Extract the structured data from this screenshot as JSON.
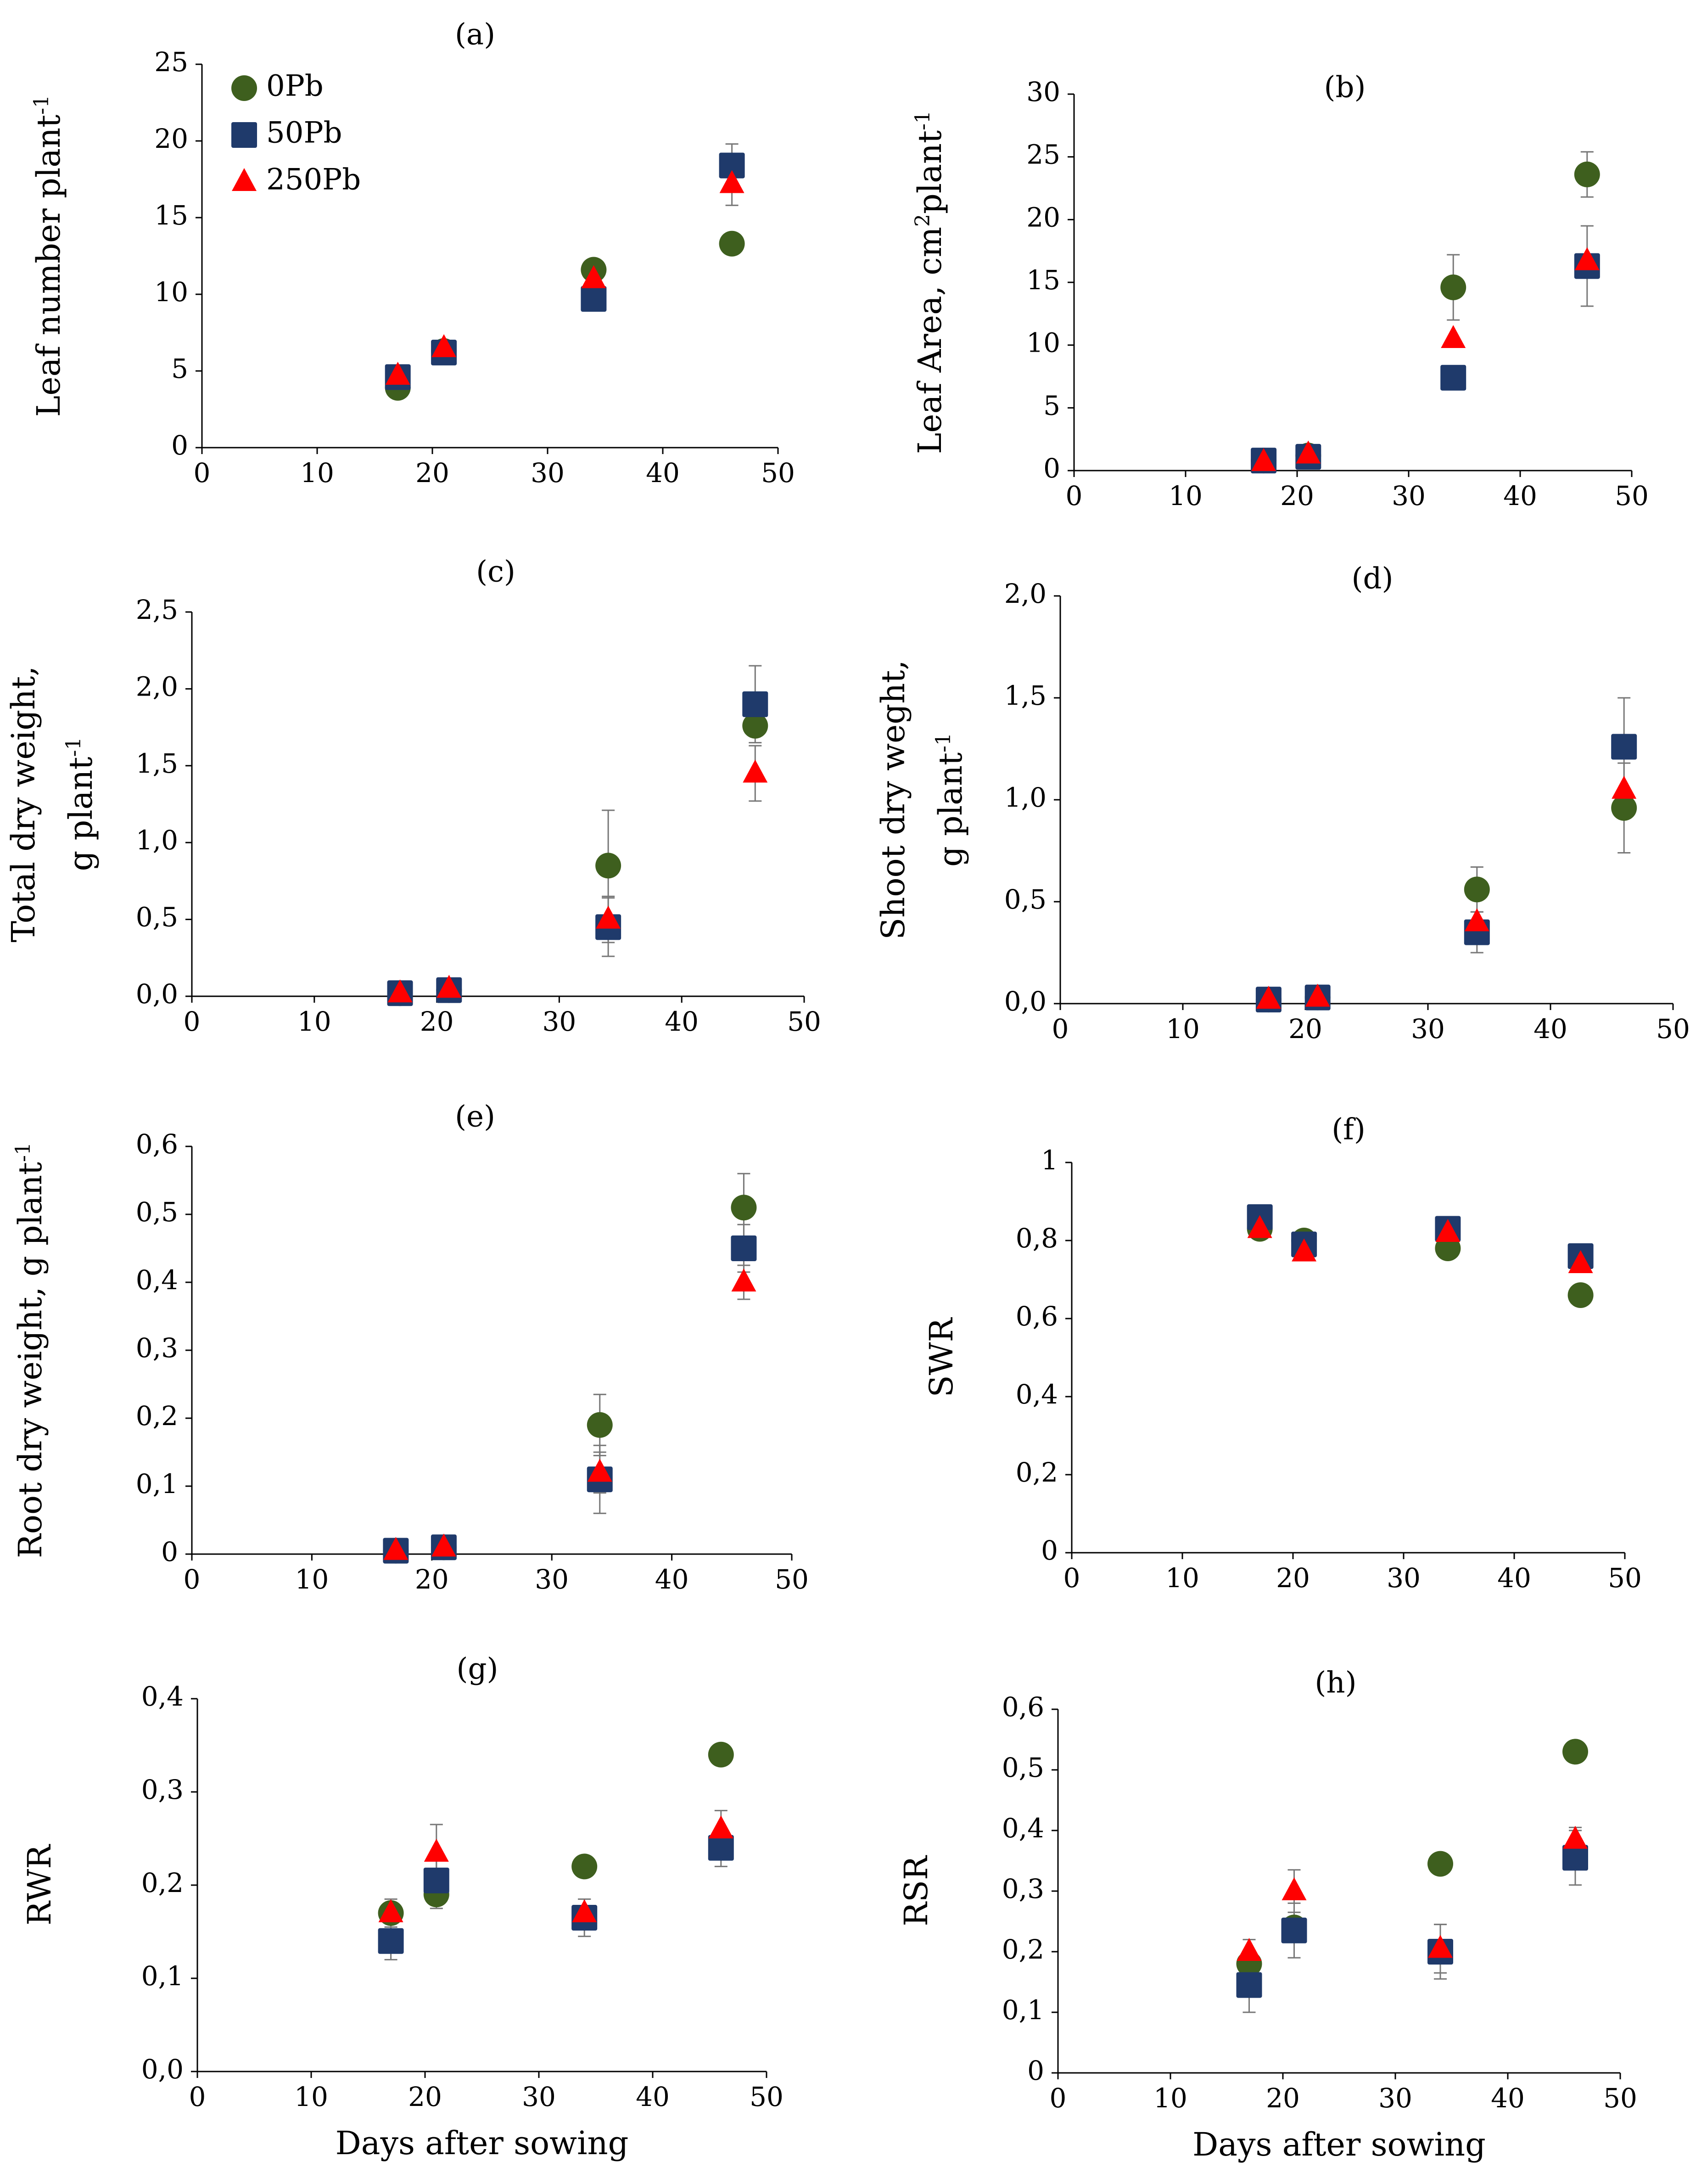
{
  "colors": {
    "0Pb": "#3e5f1e",
    "50Pb": "#1f3a6b",
    "250Pb": "#ff0000",
    "axis": "#000000",
    "errorbar": "#777777"
  },
  "legend": {
    "items": [
      {
        "label": "0Pb",
        "marker": "circle",
        "color": "#3e5f1e"
      },
      {
        "label": "50Pb",
        "marker": "square",
        "color": "#1f3a6b"
      },
      {
        "label": "250Pb",
        "marker": "triangle",
        "color": "#ff0000"
      }
    ]
  },
  "chart_data": [
    {
      "panel": "(a)",
      "type": "scatter",
      "ylabel": "Leaf number plant",
      "ylabel_sup": "-1",
      "xlabel": "",
      "xlim": [
        0,
        50
      ],
      "ylim": [
        0,
        25
      ],
      "xticks": [
        "0",
        "10",
        "20",
        "30",
        "40",
        "50"
      ],
      "yticks": [
        "0",
        "5",
        "10",
        "15",
        "20",
        "25"
      ],
      "x": [
        17,
        21,
        34,
        46
      ],
      "series": [
        {
          "name": "0Pb",
          "values": [
            3.9,
            6.3,
            11.6,
            13.3
          ],
          "err": [
            0,
            0,
            0,
            0
          ]
        },
        {
          "name": "50Pb",
          "values": [
            4.6,
            6.2,
            9.7,
            18.4
          ],
          "err": [
            0,
            0,
            0,
            1.4
          ]
        },
        {
          "name": "250Pb",
          "values": [
            4.7,
            6.5,
            11.0,
            17.2
          ],
          "err": [
            0,
            0,
            0,
            1.4
          ]
        }
      ]
    },
    {
      "panel": "(b)",
      "type": "scatter",
      "ylabel": "Leaf Area, cm",
      "ylabel_mid_sup": "2",
      "ylabel_tail": "plant",
      "ylabel_sup": "-1",
      "xlabel": "",
      "xlim": [
        0,
        50
      ],
      "ylim": [
        0,
        30
      ],
      "xticks": [
        "0",
        "10",
        "20",
        "30",
        "40",
        "50"
      ],
      "yticks": [
        "0",
        "5",
        "10",
        "15",
        "20",
        "25",
        "30"
      ],
      "x": [
        17,
        21,
        34,
        46
      ],
      "series": [
        {
          "name": "0Pb",
          "values": [
            0.8,
            1.2,
            14.6,
            23.6
          ],
          "err": [
            0,
            0,
            2.6,
            1.8
          ]
        },
        {
          "name": "50Pb",
          "values": [
            0.8,
            1.1,
            7.4,
            16.3
          ],
          "err": [
            0,
            0,
            0,
            3.2
          ]
        },
        {
          "name": "250Pb",
          "values": [
            0.7,
            1.3,
            10.5,
            16.7
          ],
          "err": [
            0,
            0,
            0,
            0
          ]
        }
      ]
    },
    {
      "panel": "(c)",
      "type": "scatter",
      "ylabel": "Total dry weight,",
      "ylabel2": "g plant",
      "ylabel_sup": "-1",
      "xlabel": "",
      "xlim": [
        0,
        50
      ],
      "ylim": [
        0,
        2.5
      ],
      "xticks": [
        "0",
        "10",
        "20",
        "30",
        "40",
        "50"
      ],
      "yticks": [
        "0,0",
        "0,5",
        "1,0",
        "1,5",
        "2,0",
        "2,5"
      ],
      "x": [
        17,
        21,
        34,
        46
      ],
      "series": [
        {
          "name": "0Pb",
          "values": [
            0.02,
            0.04,
            0.85,
            1.76
          ],
          "err": [
            0,
            0,
            0.36,
            0
          ]
        },
        {
          "name": "50Pb",
          "values": [
            0.02,
            0.04,
            0.45,
            1.9
          ],
          "err": [
            0,
            0,
            0.19,
            0.25
          ]
        },
        {
          "name": "250Pb",
          "values": [
            0.02,
            0.05,
            0.5,
            1.45
          ],
          "err": [
            0,
            0,
            0.15,
            0.18
          ]
        }
      ]
    },
    {
      "panel": "(d)",
      "type": "scatter",
      "ylabel": "Shoot dry weght,",
      "ylabel2": "g plant",
      "ylabel_sup": "-1",
      "xlabel": "",
      "xlim": [
        0,
        50
      ],
      "ylim": [
        0,
        2.0
      ],
      "xticks": [
        "0",
        "10",
        "20",
        "30",
        "40",
        "50"
      ],
      "yticks": [
        "0,0",
        "0,5",
        "1,0",
        "1,5",
        "2,0"
      ],
      "x": [
        17,
        21,
        34,
        46
      ],
      "series": [
        {
          "name": "0Pb",
          "values": [
            0.02,
            0.03,
            0.56,
            0.96
          ],
          "err": [
            0,
            0,
            0.11,
            0.22
          ]
        },
        {
          "name": "50Pb",
          "values": [
            0.02,
            0.03,
            0.35,
            1.26
          ],
          "err": [
            0,
            0,
            0.1,
            0.24
          ]
        },
        {
          "name": "250Pb",
          "values": [
            0.02,
            0.03,
            0.4,
            1.05
          ],
          "err": [
            0,
            0,
            0,
            0
          ]
        }
      ]
    },
    {
      "panel": "(e)",
      "type": "scatter",
      "ylabel": "Root dry weight, g plant",
      "ylabel_sup": "-1",
      "xlabel": "",
      "xlim": [
        0,
        50
      ],
      "ylim": [
        0,
        0.6
      ],
      "xticks": [
        "0",
        "10",
        "20",
        "30",
        "40",
        "50"
      ],
      "yticks": [
        "0",
        "0,1",
        "0,2",
        "0,3",
        "0,4",
        "0,5",
        "0,6"
      ],
      "x": [
        17,
        21,
        34,
        46
      ],
      "series": [
        {
          "name": "0Pb",
          "values": [
            0.005,
            0.01,
            0.19,
            0.51
          ],
          "err": [
            0,
            0,
            0.045,
            0.05
          ]
        },
        {
          "name": "50Pb",
          "values": [
            0.005,
            0.01,
            0.11,
            0.45
          ],
          "err": [
            0,
            0,
            0.05,
            0.035
          ]
        },
        {
          "name": "250Pb",
          "values": [
            0.005,
            0.01,
            0.12,
            0.4
          ],
          "err": [
            0,
            0,
            0.03,
            0.025
          ]
        }
      ]
    },
    {
      "panel": "(f)",
      "type": "scatter",
      "ylabel": "SWR",
      "xlabel": "",
      "xlim": [
        0,
        50
      ],
      "ylim": [
        0,
        1
      ],
      "xticks": [
        "0",
        "10",
        "20",
        "30",
        "40",
        "50"
      ],
      "yticks": [
        "0",
        "0,2",
        "0,4",
        "0,6",
        "0,8",
        "1"
      ],
      "x": [
        17,
        21,
        34,
        46
      ],
      "series": [
        {
          "name": "0Pb",
          "values": [
            0.83,
            0.8,
            0.78,
            0.66
          ],
          "err": [
            0,
            0,
            0,
            0
          ]
        },
        {
          "name": "50Pb",
          "values": [
            0.86,
            0.79,
            0.83,
            0.76
          ],
          "err": [
            0,
            0,
            0,
            0
          ]
        },
        {
          "name": "250Pb",
          "values": [
            0.83,
            0.77,
            0.82,
            0.74
          ],
          "err": [
            0,
            0,
            0,
            0
          ]
        }
      ]
    },
    {
      "panel": "(g)",
      "type": "scatter",
      "ylabel": "RWR",
      "xlabel": "Days after sowing",
      "xlim": [
        0,
        50
      ],
      "ylim": [
        0,
        0.4
      ],
      "xticks": [
        "0",
        "10",
        "20",
        "30",
        "40",
        "50"
      ],
      "yticks": [
        "0,0",
        "0,1",
        "0,2",
        "0,3",
        "0,4"
      ],
      "x": [
        17,
        21,
        34,
        46
      ],
      "series": [
        {
          "name": "0Pb",
          "values": [
            0.17,
            0.19,
            0.22,
            0.34
          ],
          "err": [
            0,
            0,
            0,
            0
          ]
        },
        {
          "name": "50Pb",
          "values": [
            0.14,
            0.205,
            0.165,
            0.24
          ],
          "err": [
            0.02,
            0.03,
            0.02,
            0.02
          ]
        },
        {
          "name": "250Pb",
          "values": [
            0.17,
            0.235,
            0.17,
            0.26
          ],
          "err": [
            0.015,
            0.03,
            0.015,
            0.02
          ]
        }
      ]
    },
    {
      "panel": "(h)",
      "type": "scatter",
      "ylabel": "RSR",
      "xlabel": "Days after sowing",
      "xlim": [
        0,
        50
      ],
      "ylim": [
        0,
        0.6
      ],
      "xticks": [
        "0",
        "10",
        "20",
        "30",
        "40",
        "50"
      ],
      "yticks": [
        "0",
        "0,1",
        "0,2",
        "0,3",
        "0,4",
        "0,5",
        "0,6"
      ],
      "x": [
        17,
        21,
        34,
        46
      ],
      "series": [
        {
          "name": "0Pb",
          "values": [
            0.18,
            0.24,
            0.345,
            0.53
          ],
          "err": [
            0,
            0,
            0,
            0
          ]
        },
        {
          "name": "50Pb",
          "values": [
            0.145,
            0.235,
            0.2,
            0.355
          ],
          "err": [
            0.045,
            0.045,
            0.045,
            0.045
          ]
        },
        {
          "name": "250Pb",
          "values": [
            0.2,
            0.3,
            0.205,
            0.385
          ],
          "err": [
            0.02,
            0.035,
            0.04,
            0.02
          ]
        }
      ]
    }
  ]
}
